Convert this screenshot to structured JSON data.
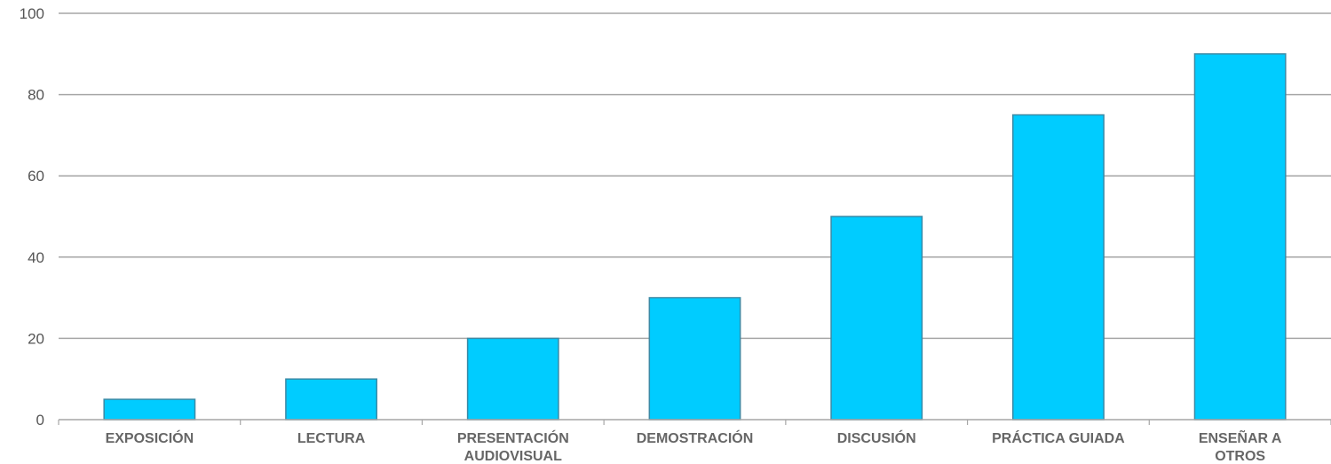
{
  "chart_data": {
    "type": "bar",
    "title": "",
    "xlabel": "",
    "ylabel": "",
    "ylim": [
      0,
      100
    ],
    "yticks": [
      0,
      20,
      40,
      60,
      80,
      100
    ],
    "grid": true,
    "legend": "none",
    "bar_color": "#00CCFF",
    "bar_stroke": "#3a8aa6",
    "grid_color": "#a6a6a6",
    "categories": [
      [
        "EXPOSICIÓN"
      ],
      [
        "LECTURA"
      ],
      [
        "PRESENTACIÓN",
        "AUDIOVISUAL"
      ],
      [
        "DEMOSTRACIÓN"
      ],
      [
        "DISCUSIÓN"
      ],
      [
        "PRÁCTICA GUIADA"
      ],
      [
        "ENSEÑAR A",
        "OTROS"
      ]
    ],
    "values": [
      5,
      10,
      20,
      30,
      50,
      75,
      90
    ]
  }
}
